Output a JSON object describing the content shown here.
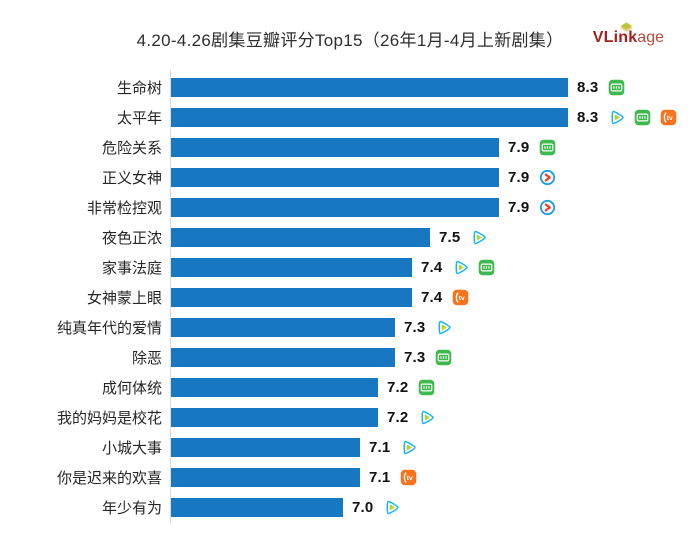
{
  "title": "4.20-4.26剧集豆瓣评分Top15（26年1月-4月上新剧集）",
  "logo": {
    "bold": "VLink",
    "light": "age"
  },
  "colors": {
    "bar": "#1778c1",
    "axis_line": "#dcdcdc",
    "title_text": "#2e2e2e",
    "label_text": "#262626",
    "logo_red": "#a2211f",
    "tencent_blue": "#16b6f0",
    "iqiyi_green": "#3eb94e",
    "mango_orange": "#f8731d",
    "youku_blue": "#1d9fe0",
    "youku_red": "#e83d2a"
  },
  "platform_icons": {
    "tencent-video": "play-triangle-blue-green-yellow",
    "iqiyi": "green-rounded-square-tv",
    "mango-tv": "orange-rounded-square-tv",
    "youku": "blue-circle-red-arrow"
  },
  "chart_data": {
    "type": "bar",
    "orientation": "horizontal",
    "title": "4.20-4.26剧集豆瓣评分Top15（26年1月-4月上新剧集）",
    "xlabel": "",
    "ylabel": "",
    "xlim": [
      6.0,
      8.5
    ],
    "grid": false,
    "legend": "none",
    "bar_color": "#1778c1",
    "categories": [
      "生命树",
      "太平年",
      "危险关系",
      "正义女神",
      "非常检控观",
      "夜色正浓",
      "家事法庭",
      "女神蒙上眼",
      "纯真年代的爱情",
      "除恶",
      "成何体统",
      "我的妈妈是校花",
      "小城大事",
      "你是迟来的欢喜",
      "年少有为"
    ],
    "values": [
      8.3,
      8.3,
      7.9,
      7.9,
      7.9,
      7.5,
      7.4,
      7.4,
      7.3,
      7.3,
      7.2,
      7.2,
      7.1,
      7.1,
      7.0
    ],
    "platforms": [
      [
        "iqiyi"
      ],
      [
        "tencent-video",
        "iqiyi",
        "mango-tv"
      ],
      [
        "iqiyi"
      ],
      [
        "youku"
      ],
      [
        "youku"
      ],
      [
        "tencent-video"
      ],
      [
        "tencent-video",
        "iqiyi"
      ],
      [
        "mango-tv"
      ],
      [
        "tencent-video"
      ],
      [
        "iqiyi"
      ],
      [
        "iqiyi"
      ],
      [
        "tencent-video"
      ],
      [
        "tencent-video"
      ],
      [
        "mango-tv"
      ],
      [
        "tencent-video"
      ]
    ]
  }
}
